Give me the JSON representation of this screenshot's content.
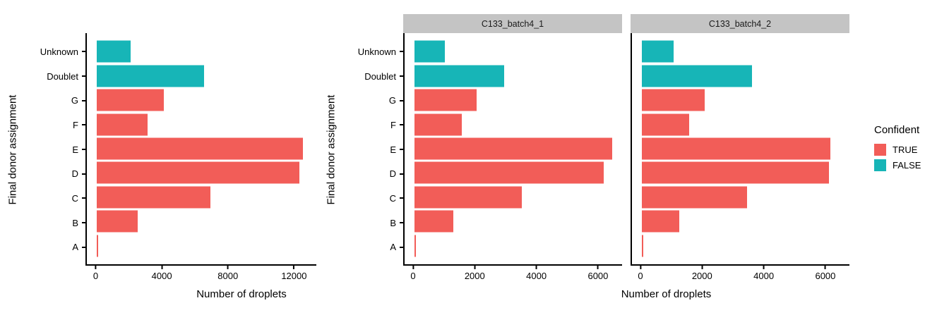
{
  "chart_data": {
    "type": "bar",
    "orientation": "horizontal",
    "xlabel": "Number of droplets",
    "ylabel": "Final donor assignment",
    "categories_top_to_bottom": [
      "Unknown",
      "Doublet",
      "G",
      "F",
      "E",
      "D",
      "C",
      "B",
      "A"
    ],
    "confident_by_category": [
      false,
      false,
      true,
      true,
      true,
      true,
      true,
      true,
      true
    ],
    "colors": {
      "confident_true": "#F25D58",
      "confident_false": "#17B5B7",
      "strip_bg": "#C4C4C4",
      "axis": "#000000"
    },
    "grid": false,
    "panels": [
      {
        "facet": "",
        "values": [
          2030,
          6500,
          4070,
          3080,
          12550,
          12300,
          6890,
          2490,
          85
        ],
        "xticks": [
          0,
          4000,
          8000,
          12000
        ],
        "xmin": -620,
        "xmax": 13350
      },
      {
        "facet": "C133_batch4_1",
        "values": [
          990,
          2940,
          2020,
          1540,
          6450,
          6170,
          3510,
          1270,
          45
        ],
        "xticks": [
          0,
          2000,
          4000,
          6000
        ],
        "xmin": -320,
        "xmax": 6780
      },
      {
        "facet": "C133_batch4_2",
        "values": [
          1040,
          3600,
          2050,
          1540,
          6150,
          6110,
          3430,
          1230,
          40
        ],
        "xticks": [
          0,
          2000,
          4000,
          6000
        ],
        "xmin": -320,
        "xmax": 6780
      }
    ],
    "legend": {
      "title": "Confident",
      "position": "right",
      "items": [
        {
          "label": "TRUE",
          "color": "#F25D58"
        },
        {
          "label": "FALSE",
          "color": "#17B5B7"
        }
      ]
    }
  }
}
